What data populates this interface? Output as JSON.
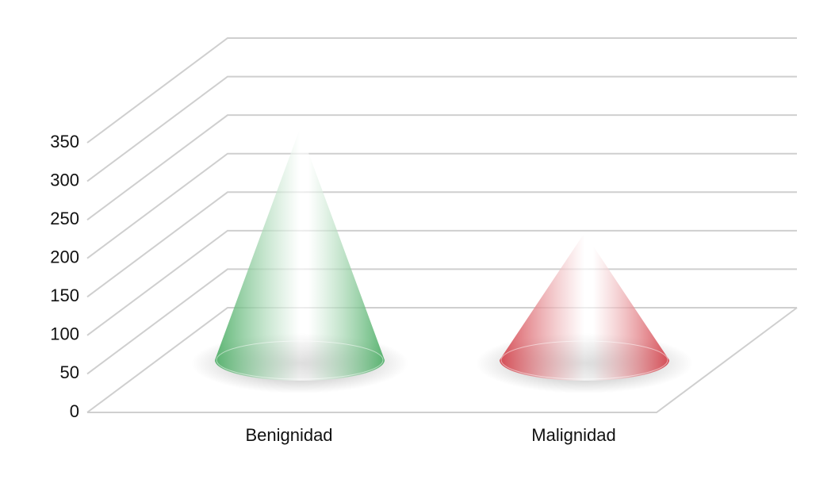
{
  "chart_data": {
    "type": "cone",
    "categories": [
      "Benignidad",
      "Malignidad"
    ],
    "series": [
      {
        "values": [
          300,
          165
        ],
        "colors": [
          "#3fa85a",
          "#d0303a"
        ]
      }
    ],
    "ylim": [
      0,
      350
    ],
    "yticks": [
      0,
      50,
      100,
      150,
      200,
      250,
      300,
      350
    ],
    "grid": true
  }
}
